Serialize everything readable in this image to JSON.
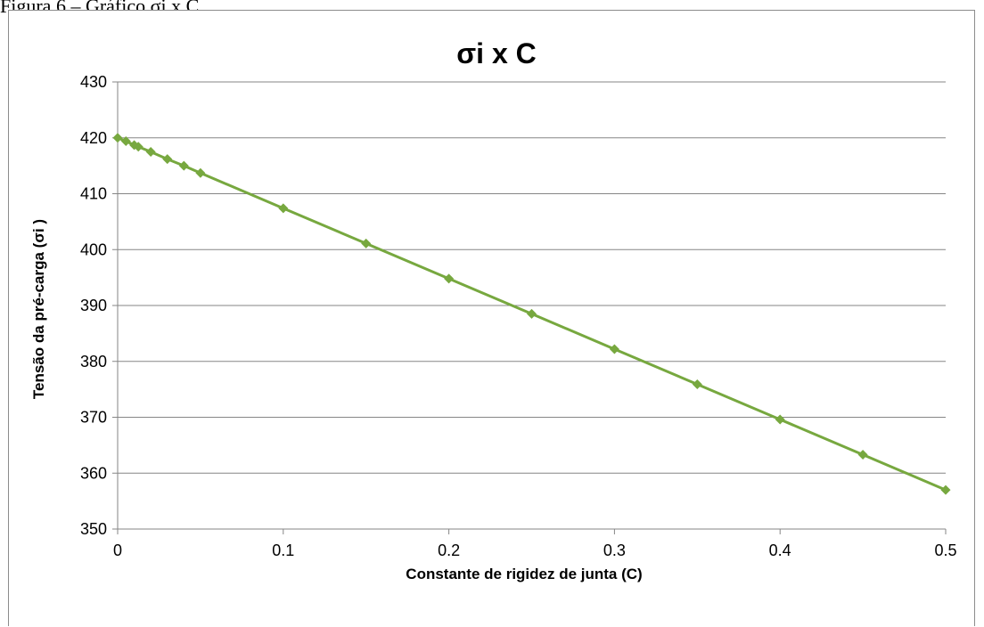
{
  "caption": "Figura 6 – Gráfico σi x C.",
  "chart_data": {
    "type": "line",
    "title": "σi x C",
    "xlabel": "Constante de rigidez de junta (C)",
    "ylabel": "Tensão da pré-carga (σi )",
    "xlim": [
      0,
      0.5
    ],
    "ylim": [
      350,
      430
    ],
    "x_ticks": [
      "0",
      "0.1",
      "0.2",
      "0.3",
      "0.4",
      "0.5"
    ],
    "y_ticks": [
      "350",
      "360",
      "370",
      "380",
      "390",
      "400",
      "410",
      "420",
      "430"
    ],
    "grid": true,
    "legend": "none",
    "series": [
      {
        "color": "#77a83f",
        "marker": "diamond",
        "x": [
          0,
          0.005,
          0.01,
          0.0125,
          0.02,
          0.03,
          0.04,
          0.05,
          0.1,
          0.15,
          0.2,
          0.25,
          0.3,
          0.35,
          0.4,
          0.45,
          0.5
        ],
        "y": [
          420,
          419.4,
          418.7,
          418.4,
          417.5,
          416.2,
          415.0,
          413.7,
          407.4,
          401.1,
          394.8,
          388.5,
          382.2,
          375.9,
          369.6,
          363.3,
          357.0
        ]
      }
    ]
  }
}
